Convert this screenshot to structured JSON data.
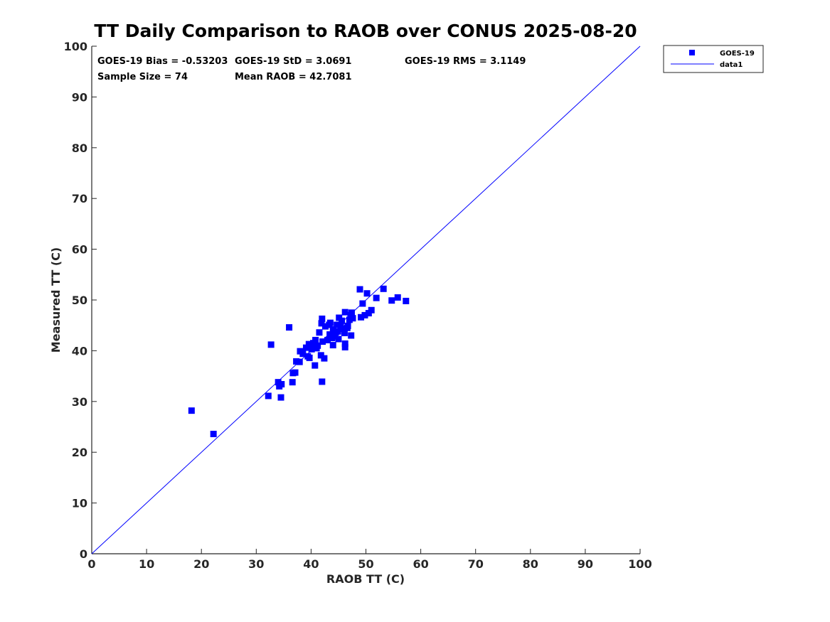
{
  "chart_data": {
    "type": "scatter",
    "title": "TT Daily Comparison to RAOB over CONUS 2025-08-20",
    "xlabel": "RAOB TT (C)",
    "ylabel": "Measured TT (C)",
    "xlim": [
      0,
      100
    ],
    "ylim": [
      0,
      100
    ],
    "xticks": [
      "0",
      "10",
      "20",
      "30",
      "40",
      "50",
      "60",
      "70",
      "80",
      "90",
      "100"
    ],
    "yticks": [
      "0",
      "10",
      "20",
      "30",
      "40",
      "50",
      "60",
      "70",
      "80",
      "90",
      "100"
    ],
    "grid": false,
    "legend_position": "outside-top-right",
    "stats": {
      "bias": "GOES-19 Bias = -0.53203",
      "std": "GOES-19 StD = 3.0691",
      "rms": "GOES-19 RMS = 3.1149",
      "sample": "Sample Size = 74",
      "mean": "Mean RAOB = 42.7081"
    },
    "series": [
      {
        "name": "GOES-19",
        "kind": "scatter",
        "marker": "square",
        "color": "#0000ff",
        "points": [
          [
            18.2,
            28.2
          ],
          [
            22.2,
            23.6
          ],
          [
            32.2,
            31.1
          ],
          [
            32.7,
            41.2
          ],
          [
            34.0,
            33.8
          ],
          [
            34.2,
            33.0
          ],
          [
            34.5,
            30.8
          ],
          [
            34.6,
            33.4
          ],
          [
            36.0,
            44.6
          ],
          [
            36.6,
            33.8
          ],
          [
            36.7,
            35.6
          ],
          [
            37.1,
            35.7
          ],
          [
            37.3,
            37.9
          ],
          [
            37.9,
            37.8
          ],
          [
            38.0,
            39.9
          ],
          [
            39.1,
            40.6
          ],
          [
            39.4,
            38.9
          ],
          [
            39.7,
            38.6
          ],
          [
            39.6,
            41.3
          ],
          [
            40.2,
            40.7
          ],
          [
            40.4,
            41.5
          ],
          [
            40.7,
            37.1
          ],
          [
            40.8,
            42.1
          ],
          [
            41.0,
            40.5
          ],
          [
            41.2,
            41.0
          ],
          [
            41.5,
            43.6
          ],
          [
            41.8,
            39.1
          ],
          [
            41.9,
            45.4
          ],
          [
            42.0,
            46.3
          ],
          [
            42.0,
            33.9
          ],
          [
            42.1,
            41.8
          ],
          [
            42.4,
            38.5
          ],
          [
            42.6,
            44.8
          ],
          [
            43.0,
            42.1
          ],
          [
            43.3,
            45.1
          ],
          [
            43.5,
            45.5
          ],
          [
            43.8,
            42.5
          ],
          [
            44.0,
            41.1
          ],
          [
            44.0,
            44.2
          ],
          [
            44.3,
            42.8
          ],
          [
            44.5,
            43.6
          ],
          [
            44.7,
            45.1
          ],
          [
            44.9,
            43.8
          ],
          [
            45.0,
            42.3
          ],
          [
            45.1,
            46.5
          ],
          [
            45.4,
            44.7
          ],
          [
            45.8,
            44.3
          ],
          [
            46.2,
            47.6
          ],
          [
            46.1,
            43.5
          ],
          [
            46.2,
            41.4
          ],
          [
            46.2,
            40.7
          ],
          [
            46.6,
            44.5
          ],
          [
            46.7,
            44.9
          ],
          [
            47.0,
            46.1
          ],
          [
            47.2,
            47.0
          ],
          [
            47.3,
            43.0
          ],
          [
            47.4,
            47.5
          ],
          [
            47.6,
            46.4
          ],
          [
            48.9,
            52.1
          ],
          [
            49.1,
            46.6
          ],
          [
            49.4,
            49.3
          ],
          [
            49.8,
            47.0
          ],
          [
            50.2,
            51.3
          ],
          [
            50.5,
            47.4
          ],
          [
            51.0,
            48.0
          ],
          [
            51.9,
            50.4
          ],
          [
            53.2,
            52.2
          ],
          [
            54.7,
            49.9
          ],
          [
            55.8,
            50.5
          ],
          [
            57.3,
            49.8
          ],
          [
            43.4,
            43.2
          ],
          [
            40.1,
            40.3
          ],
          [
            38.5,
            39.4
          ],
          [
            45.6,
            45.9
          ]
        ]
      },
      {
        "name": "data1",
        "kind": "line",
        "color": "#0000ff",
        "points": [
          [
            0,
            0
          ],
          [
            100,
            100
          ]
        ]
      }
    ]
  }
}
